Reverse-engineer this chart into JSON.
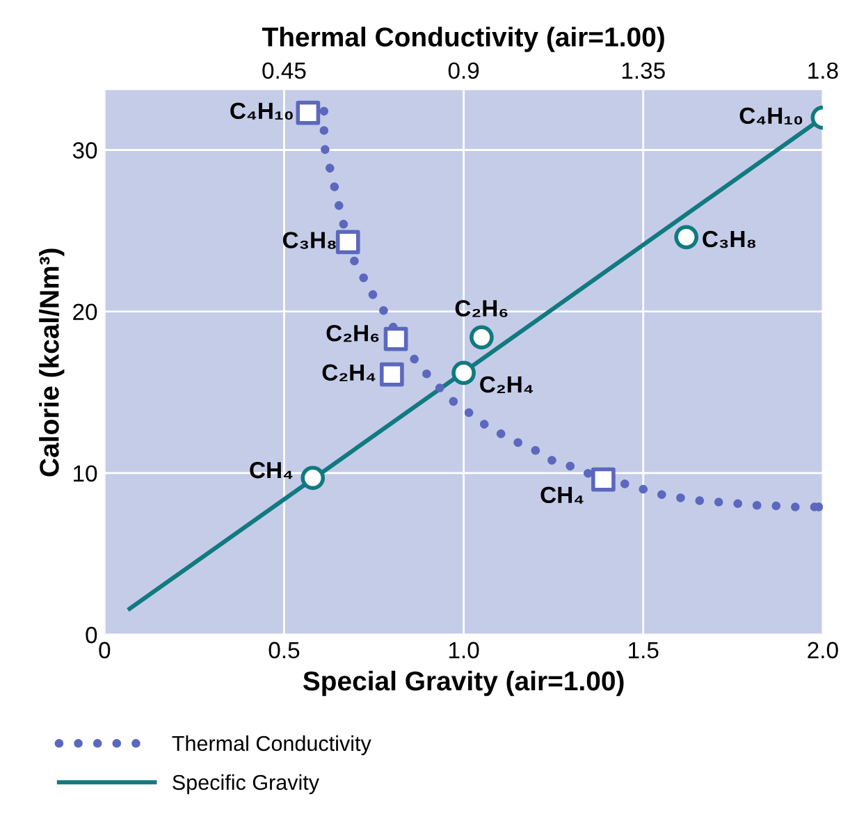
{
  "chart_data": {
    "type": "line",
    "xlabel": "Special Gravity (air=1.00)",
    "ylabel": "Calorie (kcal/Nm³)",
    "x2label": "Thermal Conductivity (air=1.00)",
    "xlim": [
      0,
      2.0
    ],
    "xticks": [
      0,
      0.5,
      {
        "value": 1.0,
        "label": "1.0"
      },
      1.5,
      {
        "value": 2.0,
        "label": "2.0"
      }
    ],
    "x2lim": [
      0,
      1.8
    ],
    "x2ticks": [
      0.45,
      0.9,
      1.35,
      1.8
    ],
    "ylim": [
      0,
      33.7
    ],
    "yticks": [
      0,
      10,
      20,
      30
    ],
    "grid": true,
    "legend": "bottom",
    "series": [
      {
        "name": "Thermal Conductivity",
        "axis": "x2",
        "line_style": "dotted",
        "marker": "none",
        "color": "#5b68bd",
        "x": [
          0.55,
          0.55,
          0.55,
          0.56,
          0.57,
          0.58,
          0.59,
          0.6,
          0.61,
          0.62,
          0.64,
          0.66,
          0.68,
          0.71,
          0.73,
          0.76,
          0.79,
          0.82,
          0.85,
          0.88,
          0.91,
          0.94,
          0.98,
          1.02,
          1.05,
          1.09,
          1.12,
          1.16,
          1.2,
          1.25,
          1.31,
          1.35,
          1.39,
          1.43,
          1.47,
          1.51,
          1.55,
          1.59,
          1.63,
          1.67,
          1.71,
          1.75,
          1.79
        ],
        "values": [
          32.4,
          31.4,
          30.3,
          29.3,
          28.4,
          27.3,
          26.3,
          25.3,
          24.3,
          23.4,
          22.5,
          21.6,
          20.7,
          19.7,
          18.7,
          17.6,
          16.6,
          15.8,
          15.0,
          14.3,
          13.8,
          13.2,
          12.6,
          12.1,
          11.7,
          11.3,
          10.8,
          10.5,
          10.1,
          9.6,
          9.3,
          9.0,
          8.7,
          8.5,
          8.4,
          8.2,
          8.2,
          8.1,
          8.0,
          8.0,
          7.9,
          7.9,
          7.9
        ]
      },
      {
        "type": "scatter",
        "axis": "x2",
        "marker": "square",
        "color": "#5b68bd",
        "x": [
          0.51,
          0.61,
          0.73,
          0.72,
          1.25
        ],
        "values": [
          32.3,
          24.3,
          18.3,
          16.1,
          9.6
        ]
      },
      {
        "name": "Specific Gravity",
        "line_style": "solid",
        "marker": "none",
        "color": "#107a80",
        "x": [
          0.07,
          2.0
        ],
        "values": [
          1.6,
          32.0
        ]
      },
      {
        "type": "scatter",
        "marker": "circle",
        "color": "#107a80",
        "x": [
          0.58,
          1.0,
          1.05,
          1.62,
          2.0
        ],
        "values": [
          9.7,
          16.2,
          18.4,
          24.6,
          32.0
        ]
      }
    ],
    "annotations": [
      {
        "text": "C₄H₁₀",
        "x": 0.56,
        "y": 32.3
      },
      {
        "text": "C₃H₈",
        "x": 0.68,
        "y": 24.3
      },
      {
        "text": "C₂H₆",
        "x": 0.81,
        "y": 18.3
      },
      {
        "text": "C₂H₄",
        "x": 0.8,
        "y": 16.1
      },
      {
        "text": "CH₄",
        "x": 1.39,
        "y": 9.6
      },
      {
        "text": "CH₄",
        "x": 0.58,
        "y": 9.7
      },
      {
        "text": "C₂H₄",
        "x": 1.0,
        "y": 16.2
      },
      {
        "text": "C₂H₆",
        "x": 1.05,
        "y": 18.4
      },
      {
        "text": "C₃H₈",
        "x": 1.62,
        "y": 24.6
      },
      {
        "text": "C₄H₁₀",
        "x": 2.0,
        "y": 32.0
      }
    ]
  }
}
